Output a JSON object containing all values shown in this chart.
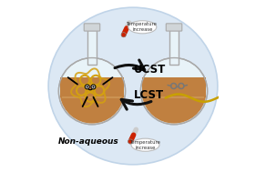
{
  "bg_color": "#dce8f4",
  "bg_edge": "#c0d4e8",
  "flask_glass": "#e8f3f8",
  "flask_edge": "#aaaaaa",
  "flask_stopper": "#d0d5d8",
  "liquid_color": "#c08040",
  "liquid_dark": "#a06820",
  "arrow_color": "#111111",
  "ucst_text": "UCST",
  "lcst_text": "LCST",
  "nonaq_text": "Non-aqueous",
  "temp_text": "Temperature\nincrease",
  "poly1_color": "#d4a010",
  "poly2_color": "#c8a000",
  "glass_color": "#888888",
  "therm_red": "#cc2200",
  "therm_body": "#dddddd",
  "f1x": 0.26,
  "f1y": 0.47,
  "f2x": 0.74,
  "f2y": 0.47,
  "fr": 0.195
}
